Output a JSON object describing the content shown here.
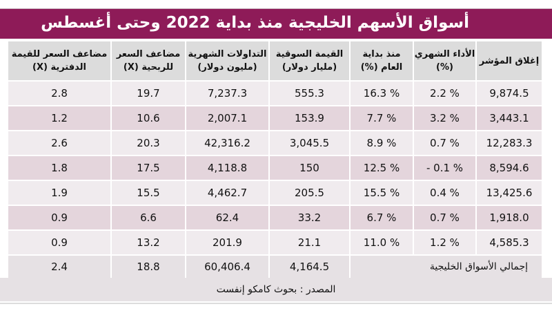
{
  "title": "أسواق الأسهم الخليجية منذ بداية 2022 وحتى أغسطس",
  "headers": {
    "pb": "مضاعف السعر للقيمة الدفترية (X)",
    "pe": "مضاعف السعر للربحية (X)",
    "turnover": "التداولات الشهرية (مليون دولار)",
    "mcap": "القيمة السوقية (مليار دولار)",
    "ytd": "منذ بداية العام (%)",
    "monthly": "الأداء الشهري (%)",
    "close": "إغلاق المؤشر"
  },
  "rows": [
    {
      "pb": "2.8",
      "pe": "19.7",
      "turnover": "7,237.3",
      "mcap": "555.3",
      "ytd": "16.3 %",
      "monthly": "2.2 %",
      "close": "9,874.5"
    },
    {
      "pb": "1.2",
      "pe": "10.6",
      "turnover": "2,007.1",
      "mcap": "153.9",
      "ytd": "7.7 %",
      "monthly": "3.2 %",
      "close": "3,443.1"
    },
    {
      "pb": "2.6",
      "pe": "20.3",
      "turnover": "42,316.2",
      "mcap": "3,045.5",
      "ytd": "8.9 %",
      "monthly": "0.7 %",
      "close": "12,283.3"
    },
    {
      "pb": "1.8",
      "pe": "17.5",
      "turnover": "4,118.8",
      "mcap": "150",
      "ytd": "12.5 %",
      "monthly": "- 0.1 %",
      "close": "8,594.6"
    },
    {
      "pb": "1.9",
      "pe": "15.5",
      "turnover": "4,462.7",
      "mcap": "205.5",
      "ytd": "15.5 %",
      "monthly": "0.4 %",
      "close": "13,425.6"
    },
    {
      "pb": "0.9",
      "pe": "6.6",
      "turnover": "62.4",
      "mcap": "33.2",
      "ytd": "6.7 %",
      "monthly": "0.7 %",
      "close": "1,918.0"
    },
    {
      "pb": "0.9",
      "pe": "13.2",
      "turnover": "201.9",
      "mcap": "21.1",
      "ytd": "11.0 %",
      "monthly": "1.2 %",
      "close": "4,585.3"
    }
  ],
  "total": {
    "label": "إجمالي الأسواق الخليجية",
    "pb": "2.4",
    "pe": "18.8",
    "turnover": "60,406.4",
    "mcap": "4,164.5"
  },
  "source": "المصدر : بحوث كامكو إنفست"
}
